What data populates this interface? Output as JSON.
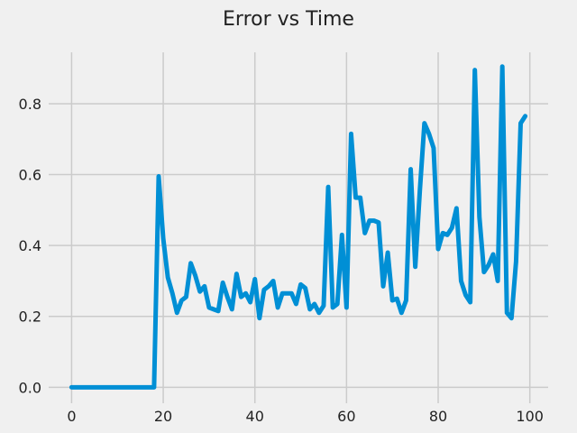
{
  "chart_data": {
    "type": "line",
    "title": "Error vs Time",
    "xlabel": "",
    "ylabel": "",
    "xlim": [
      -5,
      104
    ],
    "ylim": [
      -0.045,
      0.945
    ],
    "xticks": [
      0,
      20,
      40,
      60,
      80,
      100
    ],
    "xtick_labels": [
      "0",
      "20",
      "40",
      "60",
      "80",
      "100"
    ],
    "yticks": [
      0.0,
      0.2,
      0.4,
      0.6,
      0.8
    ],
    "ytick_labels": [
      "0.0",
      "0.2",
      "0.4",
      "0.6",
      "0.8"
    ],
    "grid": true,
    "legend": "none",
    "line_color": "#008fd5",
    "background_color": "#f0f0f0",
    "series": [
      {
        "x": [
          0,
          1,
          2,
          3,
          4,
          5,
          6,
          7,
          8,
          9,
          10,
          11,
          12,
          13,
          14,
          15,
          16,
          17,
          18,
          19,
          20,
          21,
          22,
          23,
          24,
          25,
          26,
          27,
          28,
          29,
          30,
          31,
          32,
          33,
          34,
          35,
          36,
          37,
          38,
          39,
          40,
          41,
          42,
          43,
          44,
          45,
          46,
          47,
          48,
          49,
          50,
          51,
          52,
          53,
          54,
          55,
          56,
          57,
          58,
          59,
          60,
          61,
          62,
          63,
          64,
          65,
          66,
          67,
          68,
          69,
          70,
          71,
          72,
          73,
          74,
          75,
          76,
          77,
          78,
          79,
          80,
          81,
          82,
          83,
          84,
          85,
          86,
          87,
          88,
          89,
          90,
          91,
          92,
          93,
          94,
          95,
          96,
          97,
          98,
          99
        ],
        "values": [
          0,
          0,
          0,
          0,
          0,
          0,
          0,
          0,
          0,
          0,
          0,
          0,
          0,
          0,
          0,
          0,
          0,
          0,
          0,
          0.595,
          0.42,
          0.31,
          0.265,
          0.21,
          0.245,
          0.255,
          0.35,
          0.315,
          0.27,
          0.285,
          0.225,
          0.22,
          0.215,
          0.295,
          0.255,
          0.22,
          0.32,
          0.255,
          0.265,
          0.24,
          0.305,
          0.195,
          0.275,
          0.285,
          0.3,
          0.225,
          0.265,
          0.265,
          0.265,
          0.235,
          0.29,
          0.28,
          0.22,
          0.235,
          0.21,
          0.23,
          0.565,
          0.225,
          0.235,
          0.43,
          0.225,
          0.715,
          0.535,
          0.535,
          0.435,
          0.47,
          0.47,
          0.465,
          0.285,
          0.38,
          0.245,
          0.25,
          0.21,
          0.245,
          0.615,
          0.34,
          0.555,
          0.745,
          0.715,
          0.675,
          0.39,
          0.435,
          0.43,
          0.45,
          0.505,
          0.3,
          0.26,
          0.24,
          0.895,
          0.48,
          0.325,
          0.345,
          0.375,
          0.3,
          0.905,
          0.21,
          0.195,
          0.355,
          0.745,
          0.765
        ]
      }
    ]
  }
}
